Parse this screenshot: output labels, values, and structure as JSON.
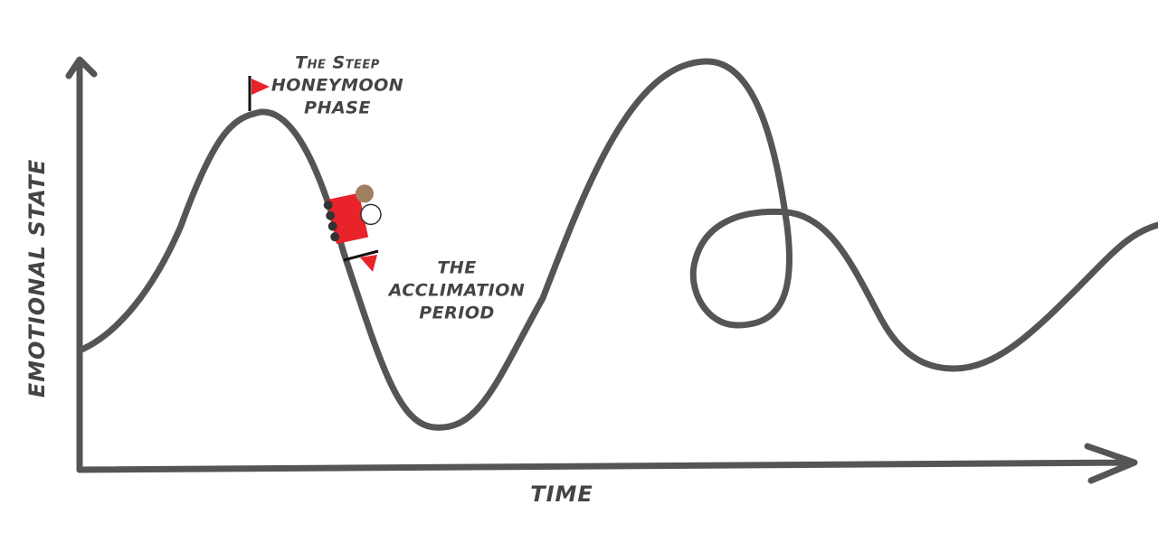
{
  "diagram": {
    "y_axis_label": "EMOTIONAL STATE",
    "x_axis_label": "TIME",
    "annotations": [
      {
        "lines": [
          "The Steep",
          "HONEYMOON",
          "PHASE"
        ]
      },
      {
        "lines": [
          "THE",
          "ACCLIMATION",
          "PERIOD"
        ]
      }
    ]
  }
}
